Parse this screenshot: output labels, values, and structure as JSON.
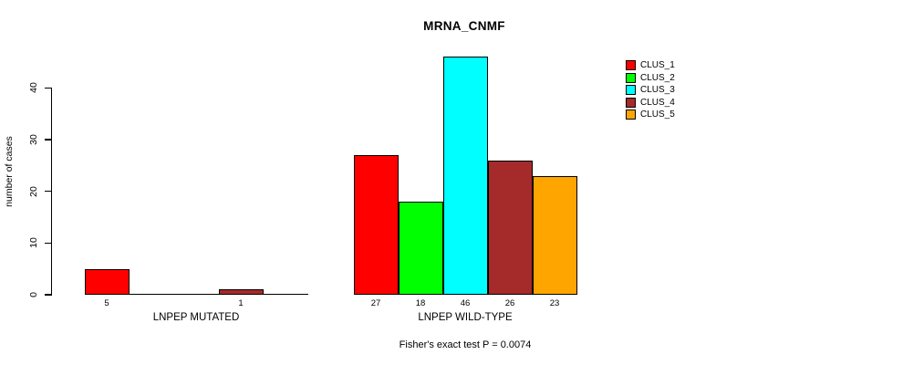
{
  "chart_data": {
    "type": "bar",
    "title": "MRNA_CNMF",
    "ylabel": "number of cases",
    "ylim": [
      0,
      46
    ],
    "yticks": [
      0,
      10,
      20,
      30,
      40
    ],
    "grid": false,
    "legend_position": "right",
    "caption": "Fisher's exact test P = 0.0074",
    "series": [
      {
        "name": "CLUS_1",
        "color": "#FF0000"
      },
      {
        "name": "CLUS_2",
        "color": "#00FF00"
      },
      {
        "name": "CLUS_3",
        "color": "#00FFFF"
      },
      {
        "name": "CLUS_4",
        "color": "#A52A2A"
      },
      {
        "name": "CLUS_5",
        "color": "#FFA500"
      }
    ],
    "groups": [
      {
        "label": "LNPEP MUTATED",
        "values": [
          5,
          0,
          0,
          1,
          0
        ],
        "value_labels": [
          "5",
          "",
          "",
          "1",
          ""
        ]
      },
      {
        "label": "LNPEP WILD-TYPE",
        "values": [
          27,
          18,
          46,
          26,
          23
        ],
        "value_labels": [
          "27",
          "18",
          "46",
          "26",
          "23"
        ]
      }
    ],
    "colors": {
      "background": "#FFFFFF",
      "axis": "#000000",
      "text": "#000000"
    }
  }
}
